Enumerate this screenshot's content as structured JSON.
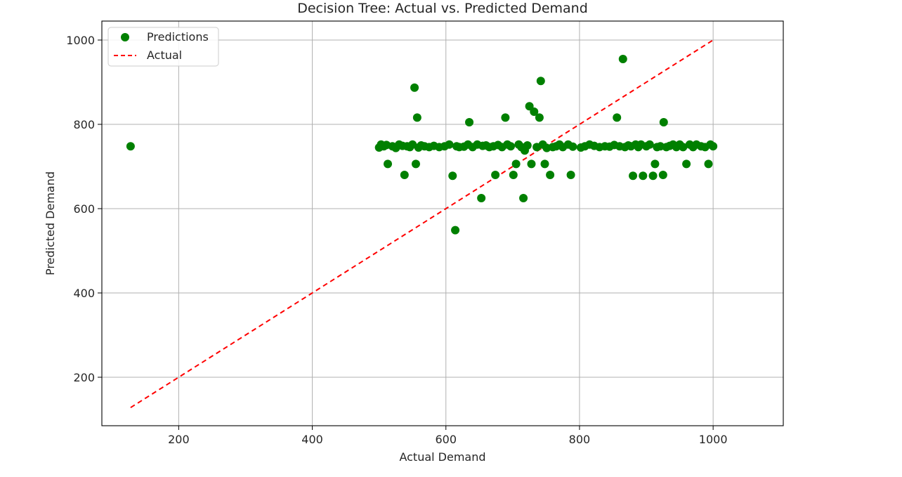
{
  "chart_data": {
    "type": "scatter",
    "title": "Decision Tree: Actual vs. Predicted Demand",
    "xlabel": "Actual Demand",
    "ylabel": "Predicted Demand",
    "xlim": [
      85,
      1105
    ],
    "ylim": [
      85,
      1045
    ],
    "xticks": [
      200,
      400,
      600,
      800,
      1000
    ],
    "yticks": [
      200,
      400,
      600,
      800,
      1000
    ],
    "grid": true,
    "legend_position": "top-left",
    "colors": {
      "predictions": "#008000",
      "actual": "#ff0000",
      "grid": "#b0b0b0",
      "axis": "#000000"
    },
    "series": [
      {
        "name": "Predictions",
        "kind": "scatter",
        "points": [
          [
            128,
            748
          ],
          [
            500,
            745
          ],
          [
            503,
            752
          ],
          [
            507,
            748
          ],
          [
            511,
            751
          ],
          [
            513,
            706
          ],
          [
            520,
            748
          ],
          [
            525,
            744
          ],
          [
            530,
            752
          ],
          [
            535,
            749
          ],
          [
            538,
            680
          ],
          [
            542,
            748
          ],
          [
            546,
            746
          ],
          [
            550,
            752
          ],
          [
            553,
            887
          ],
          [
            555,
            706
          ],
          [
            557,
            816
          ],
          [
            559,
            745
          ],
          [
            563,
            750
          ],
          [
            568,
            748
          ],
          [
            575,
            746
          ],
          [
            582,
            749
          ],
          [
            590,
            746
          ],
          [
            598,
            748
          ],
          [
            605,
            752
          ],
          [
            610,
            678
          ],
          [
            614,
            549
          ],
          [
            616,
            748
          ],
          [
            620,
            746
          ],
          [
            627,
            747
          ],
          [
            633,
            752
          ],
          [
            635,
            805
          ],
          [
            640,
            746
          ],
          [
            647,
            752
          ],
          [
            653,
            625
          ],
          [
            655,
            749
          ],
          [
            660,
            750
          ],
          [
            665,
            746
          ],
          [
            671,
            748
          ],
          [
            674,
            680
          ],
          [
            678,
            751
          ],
          [
            684,
            746
          ],
          [
            689,
            816
          ],
          [
            692,
            752
          ],
          [
            697,
            748
          ],
          [
            701,
            680
          ],
          [
            705,
            706
          ],
          [
            709,
            752
          ],
          [
            713,
            746
          ],
          [
            716,
            625
          ],
          [
            718,
            738
          ],
          [
            722,
            750
          ],
          [
            725,
            843
          ],
          [
            728,
            706
          ],
          [
            732,
            830
          ],
          [
            736,
            746
          ],
          [
            740,
            816
          ],
          [
            742,
            903
          ],
          [
            745,
            752
          ],
          [
            748,
            706
          ],
          [
            751,
            744
          ],
          [
            756,
            680
          ],
          [
            760,
            746
          ],
          [
            765,
            748
          ],
          [
            770,
            752
          ],
          [
            775,
            746
          ],
          [
            783,
            752
          ],
          [
            787,
            680
          ],
          [
            790,
            747
          ],
          [
            802,
            745
          ],
          [
            808,
            748
          ],
          [
            815,
            752
          ],
          [
            822,
            749
          ],
          [
            830,
            746
          ],
          [
            838,
            748
          ],
          [
            845,
            747
          ],
          [
            852,
            751
          ],
          [
            856,
            816
          ],
          [
            860,
            748
          ],
          [
            865,
            955
          ],
          [
            868,
            746
          ],
          [
            873,
            750
          ],
          [
            877,
            748
          ],
          [
            880,
            678
          ],
          [
            884,
            752
          ],
          [
            888,
            746
          ],
          [
            892,
            752
          ],
          [
            895,
            678
          ],
          [
            900,
            748
          ],
          [
            905,
            752
          ],
          [
            910,
            678
          ],
          [
            913,
            706
          ],
          [
            916,
            746
          ],
          [
            921,
            748
          ],
          [
            925,
            680
          ],
          [
            926,
            805
          ],
          [
            930,
            746
          ],
          [
            935,
            749
          ],
          [
            940,
            752
          ],
          [
            945,
            746
          ],
          [
            950,
            752
          ],
          [
            955,
            746
          ],
          [
            960,
            706
          ],
          [
            965,
            752
          ],
          [
            970,
            746
          ],
          [
            975,
            752
          ],
          [
            982,
            748
          ],
          [
            988,
            746
          ],
          [
            993,
            706
          ],
          [
            996,
            752
          ],
          [
            1000,
            748
          ]
        ]
      },
      {
        "name": "Actual",
        "kind": "line",
        "style": "dashed",
        "points": [
          [
            128,
            128
          ],
          [
            1000,
            1000
          ]
        ]
      }
    ]
  }
}
